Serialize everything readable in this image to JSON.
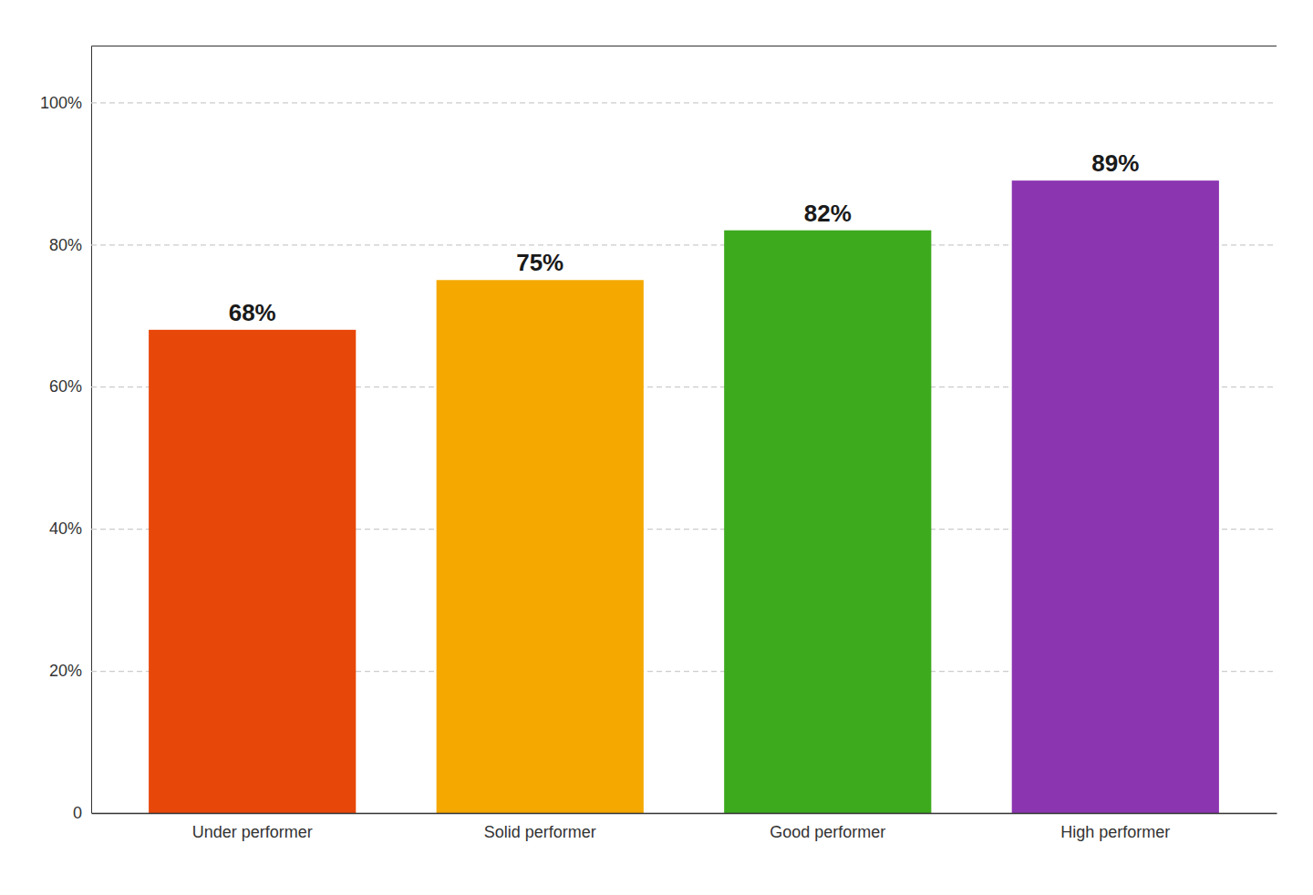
{
  "chart_data": {
    "type": "bar",
    "categories": [
      "Under performer",
      "Solid performer",
      "Good performer",
      "High performer"
    ],
    "values": [
      68,
      75,
      82,
      89
    ],
    "value_labels": [
      "68%",
      "75%",
      "82%",
      "89%"
    ],
    "data_labels": true,
    "colors": [
      "#E8470A",
      "#F5A800",
      "#3DAA1E",
      "#8B35B0"
    ],
    "ylim": [
      0,
      108
    ],
    "yticks": [
      0,
      {
        "value": 20,
        "label": "20%"
      },
      {
        "value": 40,
        "label": "40%"
      },
      {
        "value": 60,
        "label": "60%"
      },
      {
        "value": 80,
        "label": "80%"
      },
      {
        "value": 100,
        "label": "100%"
      }
    ],
    "grid": true
  }
}
